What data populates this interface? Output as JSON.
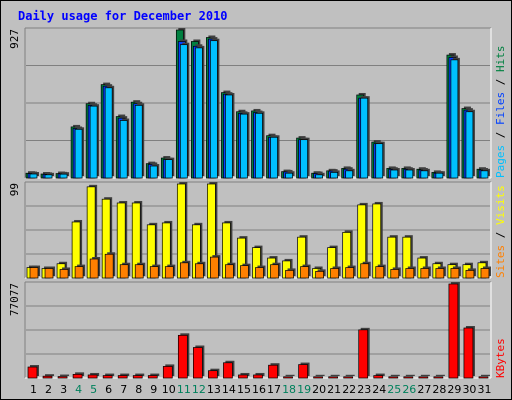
{
  "title": "Daily usage for December 2010",
  "colors": {
    "hits": "#008040",
    "files": "#0040ff",
    "pages": "#00c0ff",
    "visits": "#ffff00",
    "sites": "#ff8000",
    "kbytes": "#ff0000",
    "weekend": "#00805c",
    "weekday": "#000000",
    "title": "#0000ff"
  },
  "chart_data": [
    {
      "type": "bar",
      "title": "Daily usage for December 2010",
      "scale_label": "927",
      "ylim": [
        0,
        927
      ],
      "legend_parts": [
        "Pages",
        "Files",
        "Hits"
      ],
      "categories": [
        "1",
        "2",
        "3",
        "4",
        "5",
        "6",
        "7",
        "8",
        "9",
        "10",
        "11",
        "12",
        "13",
        "14",
        "15",
        "16",
        "17",
        "18",
        "19",
        "20",
        "21",
        "22",
        "23",
        "24",
        "25",
        "26",
        "27",
        "28",
        "29",
        "30",
        "31"
      ],
      "series": [
        {
          "name": "Hits",
          "values": [
            30,
            25,
            28,
            320,
            465,
            585,
            385,
            475,
            90,
            125,
            927,
            855,
            880,
            535,
            415,
            420,
            265,
            40,
            250,
            30,
            45,
            60,
            520,
            225,
            60,
            60,
            55,
            35,
            770,
            435,
            55
          ]
        },
        {
          "name": "Files",
          "values": [
            28,
            23,
            26,
            310,
            455,
            575,
            375,
            465,
            85,
            115,
            855,
            825,
            870,
            525,
            405,
            410,
            255,
            38,
            240,
            28,
            43,
            55,
            500,
            215,
            55,
            55,
            50,
            30,
            755,
            425,
            50
          ]
        },
        {
          "name": "Pages",
          "values": [
            25,
            20,
            24,
            305,
            450,
            565,
            360,
            455,
            75,
            115,
            835,
            815,
            860,
            520,
            400,
            405,
            255,
            30,
            240,
            20,
            35,
            45,
            500,
            215,
            50,
            50,
            45,
            30,
            740,
            415,
            45
          ]
        }
      ]
    },
    {
      "type": "bar",
      "scale_label": "99",
      "ylim": [
        0,
        99
      ],
      "legend_parts": [
        "Sites",
        "Visits"
      ],
      "categories": [
        "1",
        "2",
        "3",
        "4",
        "5",
        "6",
        "7",
        "8",
        "9",
        "10",
        "11",
        "12",
        "13",
        "14",
        "15",
        "16",
        "17",
        "18",
        "19",
        "20",
        "21",
        "22",
        "23",
        "24",
        "25",
        "26",
        "27",
        "28",
        "29",
        "30",
        "31"
      ],
      "series": [
        {
          "name": "Visits",
          "values": [
            11,
            10,
            15,
            59,
            96,
            83,
            79,
            79,
            56,
            58,
            99,
            56,
            99,
            58,
            42,
            32,
            21,
            18,
            43,
            10,
            32,
            48,
            77,
            78,
            43,
            43,
            21,
            15,
            14,
            14,
            16
          ]
        },
        {
          "name": "Sites",
          "values": [
            11,
            10,
            9,
            12,
            20,
            25,
            14,
            14,
            12,
            12,
            16,
            15,
            22,
            14,
            13,
            11,
            14,
            8,
            12,
            7,
            10,
            11,
            15,
            12,
            9,
            10,
            10,
            10,
            10,
            8,
            10
          ]
        }
      ]
    },
    {
      "type": "bar",
      "scale_label": "77077",
      "ylim": [
        0,
        77077
      ],
      "legend_parts": [
        "KBytes"
      ],
      "categories": [
        "1",
        "2",
        "3",
        "4",
        "5",
        "6",
        "7",
        "8",
        "9",
        "10",
        "11",
        "12",
        "13",
        "14",
        "15",
        "16",
        "17",
        "18",
        "19",
        "20",
        "21",
        "22",
        "23",
        "24",
        "25",
        "26",
        "27",
        "28",
        "29",
        "30",
        "31"
      ],
      "series": [
        {
          "name": "KBytes",
          "values": [
            9000,
            1500,
            1200,
            3000,
            2500,
            2000,
            2000,
            2000,
            2000,
            9500,
            35000,
            25000,
            6000,
            12500,
            2500,
            2500,
            10500,
            1000,
            11000,
            1000,
            1000,
            1000,
            39500,
            2000,
            1000,
            1000,
            1000,
            1000,
            77077,
            41000,
            1000
          ]
        }
      ]
    }
  ],
  "weekend_days": [
    4,
    5,
    11,
    12,
    18,
    19,
    25,
    26
  ]
}
